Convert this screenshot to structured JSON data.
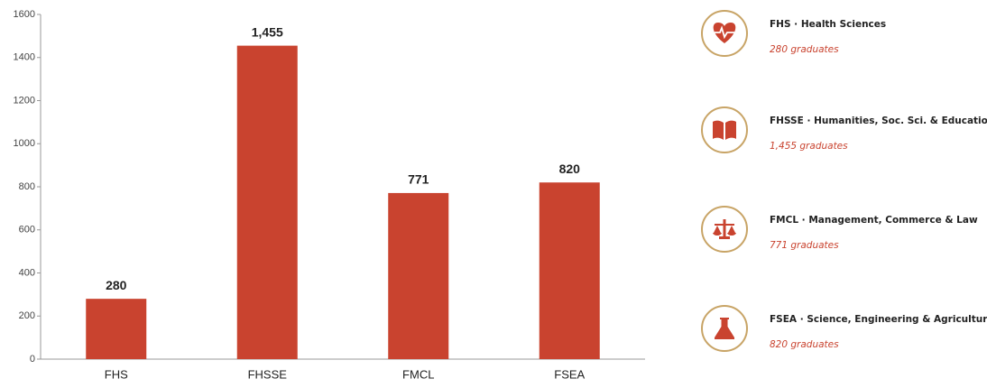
{
  "chart_data": {
    "type": "bar",
    "categories": [
      "FHS",
      "FHSSE",
      "FMCL",
      "FSEA"
    ],
    "values": [
      280,
      1455,
      771,
      820
    ],
    "value_labels": [
      "280",
      "1,455",
      "771",
      "820"
    ],
    "color": "#c9432f",
    "ylim": [
      0,
      1600
    ],
    "yticks": [
      0,
      200,
      400,
      600,
      800,
      1000,
      1200,
      1400,
      1600
    ],
    "grid": false
  },
  "panel": {
    "items": [
      {
        "title": "FHS · Health Sciences",
        "caption": "280 graduates"
      },
      {
        "title": "FHSSE · Humanities, Soc. Sci. & Education",
        "caption": "1,455 graduates"
      },
      {
        "title": "FMCL · Management, Commerce & Law",
        "caption": "771 graduates"
      },
      {
        "title": "FSEA · Science, Engineering & Agriculture",
        "caption": "820 graduates"
      }
    ]
  }
}
